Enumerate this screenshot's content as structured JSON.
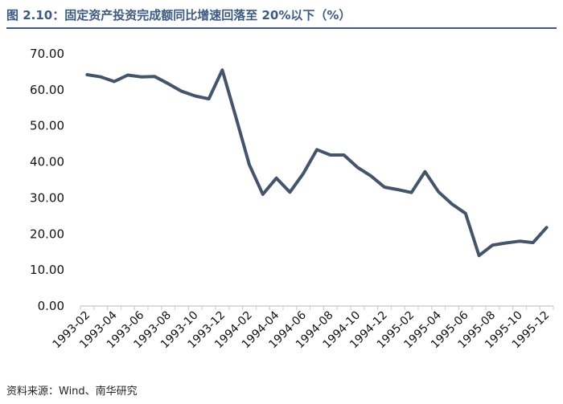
{
  "title": "图 2.10：固定资产投资完成额同比增速回落至 20%以下（%）",
  "source": "资料来源：Wind、南华研究",
  "colors": {
    "accent": "#3c5a82",
    "line": "#44546a"
  },
  "chart_data": {
    "type": "line",
    "title": "图 2.10：固定资产投资完成额同比增速回落至 20%以下（%）",
    "xlabel": "",
    "ylabel": "",
    "ylim": [
      0,
      70
    ],
    "yticks": [
      "0.00",
      "10.00",
      "20.00",
      "30.00",
      "40.00",
      "50.00",
      "60.00",
      "70.00"
    ],
    "xticks": [
      "1993-02",
      "1993-04",
      "1993-06",
      "1993-08",
      "1993-10",
      "1993-12",
      "1994-02",
      "1994-04",
      "1994-06",
      "1994-08",
      "1994-10",
      "1994-12",
      "1995-02",
      "1995-04",
      "1995-06",
      "1995-08",
      "1995-10",
      "1995-12"
    ],
    "grid": false,
    "legend": "none",
    "x": [
      "1993-02",
      "1993-03",
      "1993-04",
      "1993-05",
      "1993-06",
      "1993-07",
      "1993-08",
      "1993-09",
      "1993-10",
      "1993-11",
      "1993-12",
      "1994-01",
      "1994-02",
      "1994-03",
      "1994-04",
      "1994-05",
      "1994-06",
      "1994-07",
      "1994-08",
      "1994-09",
      "1994-10",
      "1994-11",
      "1994-12",
      "1995-01",
      "1995-02",
      "1995-03",
      "1995-04",
      "1995-05",
      "1995-06",
      "1995-07",
      "1995-08",
      "1995-09",
      "1995-10",
      "1995-11",
      "1995-12"
    ],
    "series": [
      {
        "values": [
          64.2,
          63.6,
          62.3,
          64.1,
          63.6,
          63.7,
          61.7,
          59.6,
          58.3,
          57.5,
          65.5,
          52.5,
          39.2,
          31.0,
          35.5,
          31.6,
          36.8,
          43.4,
          41.9,
          41.9,
          38.5,
          36.1,
          33.0,
          32.3,
          31.5,
          37.3,
          31.7,
          28.3,
          25.7,
          14.0,
          16.9,
          17.5,
          18.0,
          17.6,
          21.8
        ]
      }
    ]
  }
}
